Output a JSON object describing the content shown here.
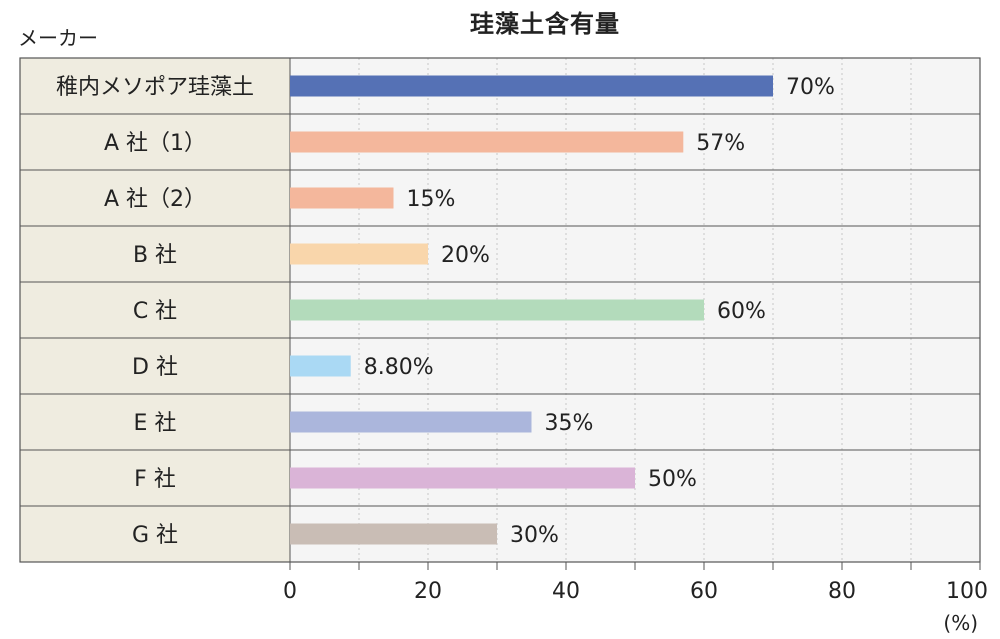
{
  "header": {
    "title": "珪藻土含有量",
    "category_header": "メーカー"
  },
  "chart_data": {
    "type": "bar",
    "orientation": "horizontal",
    "title": "珪藻土含有量",
    "ylabel": "メーカー",
    "xunit": "(%)",
    "xlim": [
      0,
      100
    ],
    "xticks": [
      "0",
      "20",
      "40",
      "60",
      "80",
      "100"
    ],
    "grid": true,
    "categories": [
      "稚内メソポア珪藻土",
      "A 社（1）",
      "A 社（2）",
      "B 社",
      "C 社",
      "D 社",
      "E 社",
      "F 社",
      "G 社"
    ],
    "values": [
      70,
      57,
      15,
      20,
      60,
      8.8,
      35,
      50,
      30
    ],
    "value_labels": [
      "70%",
      "57%",
      "15%",
      "20%",
      "60%",
      "8.80%",
      "35%",
      "50%",
      "30%"
    ],
    "colors": [
      "#5571b5",
      "#f4b79c",
      "#f4b79c",
      "#f9d6ab",
      "#b3dbbb",
      "#aad9f4",
      "#abb6dc",
      "#dab4d7",
      "#c9bdb5"
    ]
  }
}
